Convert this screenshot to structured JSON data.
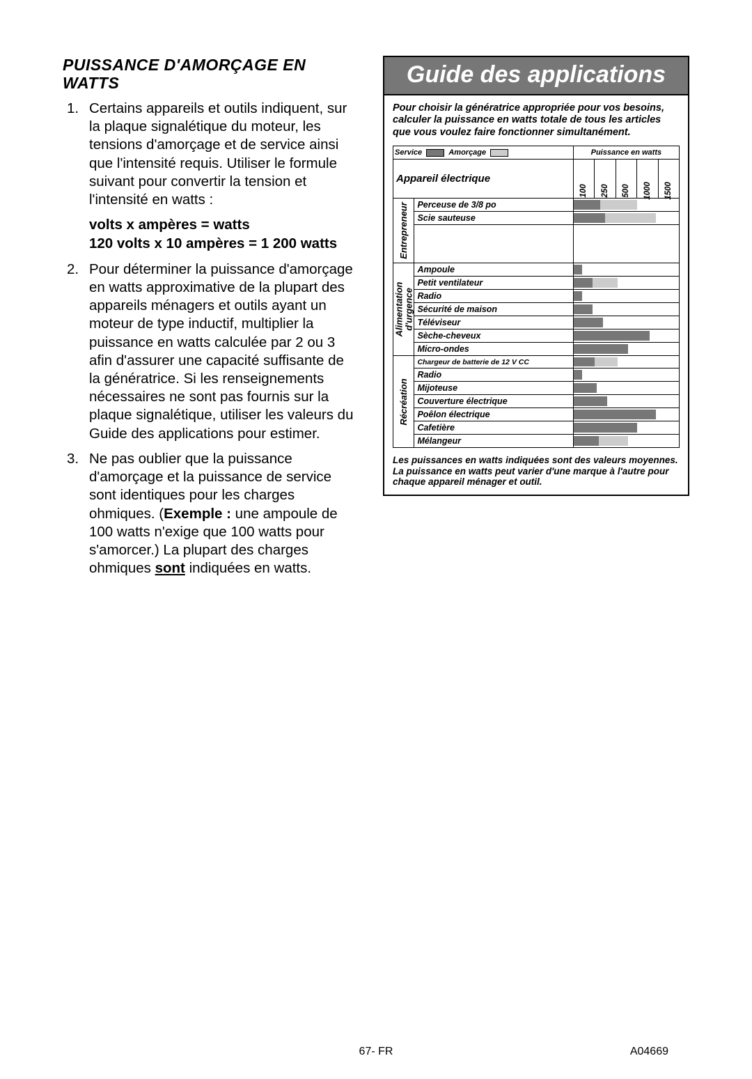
{
  "left": {
    "title": "PUISSANCE D'AMORÇAGE EN WATTS",
    "item1": "Certains appareils et outils indiquent, sur la plaque signalétique du moteur, les tensions d'amorçage et de service ainsi que l'intensité requis. Utiliser le formule suivant pour convertir la tension et l'intensité en watts :",
    "formula_line1": "volts x ampères = watts",
    "formula_line2": "120 volts x 10 ampères = 1 200 watts",
    "item2": "Pour déterminer la puissance d'amorçage en watts approxima­tive de la plupart des appareils ménagers et outils ayant un moteur de type inductif, multiplier la puissance en watts calculée par 2 ou 3 afin d'assurer une capacité suffisante de la génératrice. Si les renseignements nécessaires ne sont pas fournis sur la plaque signalétique, utiliser les valeurs du Guide des applications pour estimer.",
    "item3_a": "Ne pas oublier que la puissance d'amorçage et la puissance de service sont identiques pour les charges ohmiques. (",
    "item3_bold": "Exemple  :",
    "item3_b": " une ampoule de 100 watts n'exige que 100 watts pour s'amorcer.) La plupart des charges ohmiques ",
    "item3_under": "sont",
    "item3_c": " indiquées en watts."
  },
  "guide": {
    "title": "Guide des applications",
    "intro": "Pour choisir la génératrice appropriée pour vos besoins, calculer la puissance en watts totale de tous les articles que vous voulez faire fonctionner simultanément.",
    "legend": {
      "service": "Service",
      "amorcage": "Amorçage",
      "watts_label": "Puissance en watts",
      "service_color": "#777777",
      "amorcage_color": "#cccccc"
    },
    "header": {
      "appareil": "Appareil électrique",
      "cols": [
        "100",
        "250",
        "500",
        "1000",
        "1500"
      ]
    },
    "categories": [
      {
        "label": "Entrepreneur",
        "items": [
          {
            "name": "Perceuse de 3/8 po",
            "service_pct": 25,
            "amor_pct": 60
          },
          {
            "name": "Scie sauteuse",
            "service_pct": 30,
            "amor_pct": 78
          }
        ],
        "spacer_rows": 3
      },
      {
        "label": "Alimentation d'urgence",
        "two_line": true,
        "items": [
          {
            "name": "Ampoule",
            "service_pct": 8,
            "amor_pct": 0
          },
          {
            "name": "Petit ventilateur",
            "service_pct": 18,
            "amor_pct": 42
          },
          {
            "name": "Radio",
            "service_pct": 8,
            "amor_pct": 0
          },
          {
            "name": "Sécurité de maison",
            "service_pct": 18,
            "amor_pct": 0
          },
          {
            "name": "Téléviseur",
            "service_pct": 28,
            "amor_pct": 0
          },
          {
            "name": "Sèche-cheveux",
            "service_pct": 72,
            "amor_pct": 0
          },
          {
            "name": "Micro-ondes",
            "service_pct": 52,
            "amor_pct": 0
          }
        ],
        "spacer_rows": 0
      },
      {
        "label": "Récréation",
        "items": [
          {
            "name": "Chargeur de batterie de 12 V CC",
            "smaller": true,
            "service_pct": 20,
            "amor_pct": 42
          },
          {
            "name": "Radio",
            "service_pct": 8,
            "amor_pct": 0
          },
          {
            "name": "Mijoteuse",
            "service_pct": 22,
            "amor_pct": 0
          },
          {
            "name": "Couverture électrique",
            "service_pct": 32,
            "amor_pct": 0
          },
          {
            "name": "Poêlon électrique",
            "service_pct": 78,
            "amor_pct": 0
          },
          {
            "name": "Cafetière",
            "service_pct": 60,
            "amor_pct": 0
          },
          {
            "name": "Mélangeur",
            "service_pct": 24,
            "amor_pct": 52
          }
        ],
        "spacer_rows": 0
      }
    ],
    "footnote": "Les puissances en watts indiquées sont des valeurs moyennes. La puissance en watts peut varier d'une marque à l'autre pour chaque appareil ménager et outil."
  },
  "footer": {
    "page": "67- FR",
    "doc_id": "A04669"
  },
  "colors": {
    "title_bar_bg": "#777777",
    "title_bar_fg": "#ffffff",
    "border": "#000000"
  }
}
